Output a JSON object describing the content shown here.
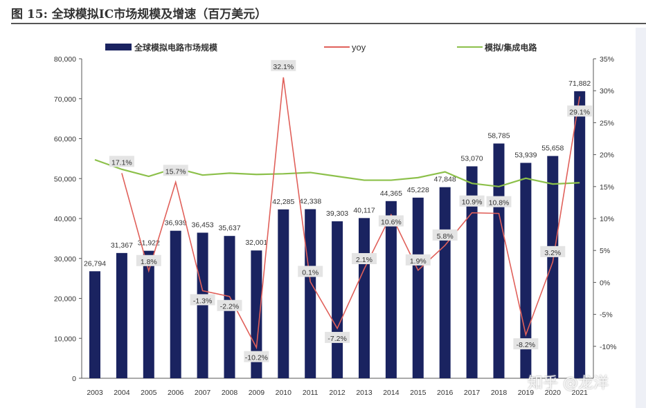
{
  "title": "图 15: 全球模拟IC市场规模及增速（百万美元）",
  "watermark": "知乎 @龙洋",
  "chart_data": {
    "type": "bar+line",
    "categories": [
      "2003",
      "2004",
      "2005",
      "2006",
      "2007",
      "2008",
      "2009",
      "2010",
      "2011",
      "2012",
      "2013",
      "2014",
      "2015",
      "2016",
      "2017",
      "2018",
      "2019",
      "2020",
      "2021"
    ],
    "series": [
      {
        "name": "全球模拟电路市场规模",
        "type": "bar",
        "axis": "left",
        "color": "#1a2360",
        "values": [
          26794,
          31367,
          31922,
          36939,
          36453,
          35637,
          32001,
          42285,
          42338,
          39303,
          40117,
          44365,
          45228,
          47848,
          53070,
          58785,
          53939,
          55658,
          71882
        ]
      },
      {
        "name": "yoy",
        "type": "line",
        "axis": "right",
        "color": "#e0605a",
        "values": [
          null,
          17.1,
          1.8,
          15.7,
          -1.3,
          -2.2,
          -10.2,
          32.1,
          0.1,
          -7.2,
          2.1,
          10.6,
          1.9,
          5.8,
          10.9,
          10.8,
          -8.2,
          3.2,
          29.1
        ]
      },
      {
        "name": "模拟/集成电路",
        "type": "line",
        "axis": "right",
        "color": "#8cc04a",
        "values": [
          19.2,
          17.7,
          16.6,
          17.9,
          16.8,
          17.1,
          16.9,
          17.0,
          17.2,
          16.6,
          16.0,
          16.0,
          16.4,
          17.3,
          15.5,
          15.0,
          16.3,
          15.4,
          15.6
        ]
      }
    ],
    "left_axis": {
      "range": [
        0,
        80000
      ],
      "ticks": [
        "0",
        "10,000",
        "20,000",
        "30,000",
        "40,000",
        "50,000",
        "60,000",
        "70,000",
        "80,000"
      ]
    },
    "right_axis": {
      "range": [
        -15,
        35
      ],
      "ticks": [
        "-10%",
        "-5%",
        "0%",
        "5%",
        "10%",
        "15%",
        "20%",
        "25%",
        "30%",
        "35%"
      ]
    },
    "legend_position": "top",
    "grid": false
  }
}
